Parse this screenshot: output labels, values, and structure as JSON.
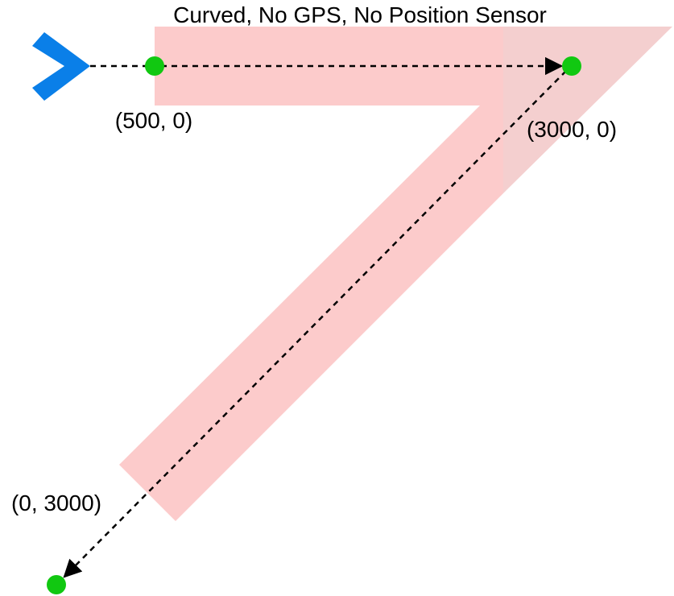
{
  "title": "Curved, No GPS, No Position Sensor",
  "colors": {
    "path_band": "#fccbcb",
    "path_band_overlap": "#f4cfcf",
    "robot": "#0a7fe8",
    "waypoint": "#11c811",
    "route_line": "#000000",
    "text": "#000000"
  },
  "robot": {
    "icon": "chevron-right-icon"
  },
  "waypoints": [
    {
      "id": "wp-500-0",
      "label": "(500, 0)"
    },
    {
      "id": "wp-3000-0",
      "label": "(3000, 0)"
    },
    {
      "id": "wp-0-3000",
      "label": "(0, 3000)"
    }
  ]
}
